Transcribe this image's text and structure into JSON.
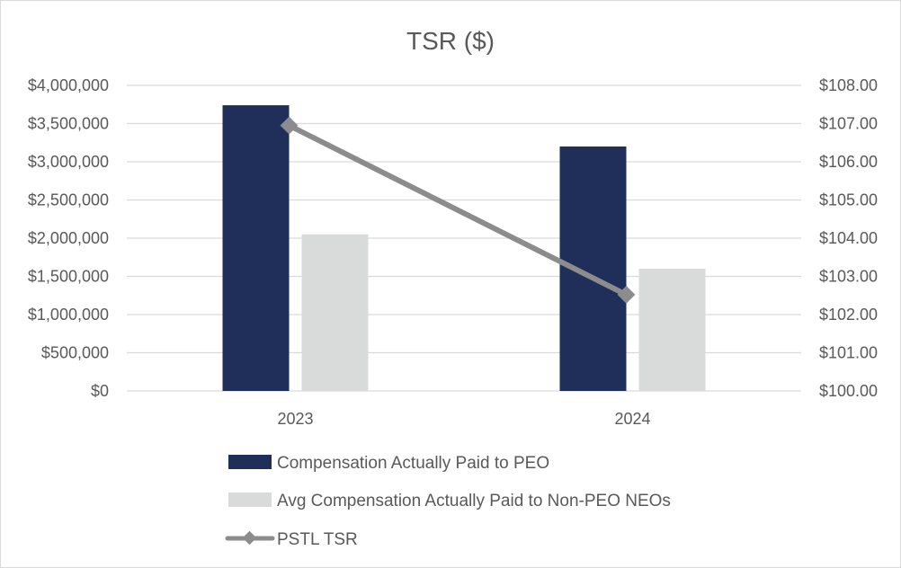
{
  "chart_data": {
    "type": "bar",
    "title": "TSR ($)",
    "categories": [
      "2023",
      "2024"
    ],
    "series": [
      {
        "name": "Compensation Actually Paid to PEO",
        "kind": "bar",
        "axis": "left",
        "color": "#1f2f5a",
        "values": [
          3740000,
          3200000
        ]
      },
      {
        "name": "Avg Compensation Actually Paid to Non-PEO NEOs",
        "kind": "bar",
        "axis": "left",
        "color": "#d9dada",
        "values": [
          2050000,
          1600000
        ]
      },
      {
        "name": "PSTL TSR",
        "kind": "line",
        "axis": "right",
        "color": "#8c8c8c",
        "values": [
          106.95,
          102.52
        ]
      }
    ],
    "y_left": {
      "ylim": [
        0,
        4000000
      ],
      "ticks": [
        0,
        500000,
        1000000,
        1500000,
        2000000,
        2500000,
        3000000,
        3500000,
        4000000
      ],
      "tick_labels": [
        "$0",
        "$500,000",
        "$1,000,000",
        "$1,500,000",
        "$2,000,000",
        "$2,500,000",
        "$3,000,000",
        "$3,500,000",
        "$4,000,000"
      ]
    },
    "y_right": {
      "ylim": [
        100,
        108
      ],
      "ticks": [
        100,
        101,
        102,
        103,
        104,
        105,
        106,
        107,
        108
      ],
      "tick_labels": [
        "$100.00",
        "$101.00",
        "$102.00",
        "$103.00",
        "$104.00",
        "$105.00",
        "$106.00",
        "$107.00",
        "$108.00"
      ]
    },
    "grid": true,
    "legend_position": "bottom"
  }
}
